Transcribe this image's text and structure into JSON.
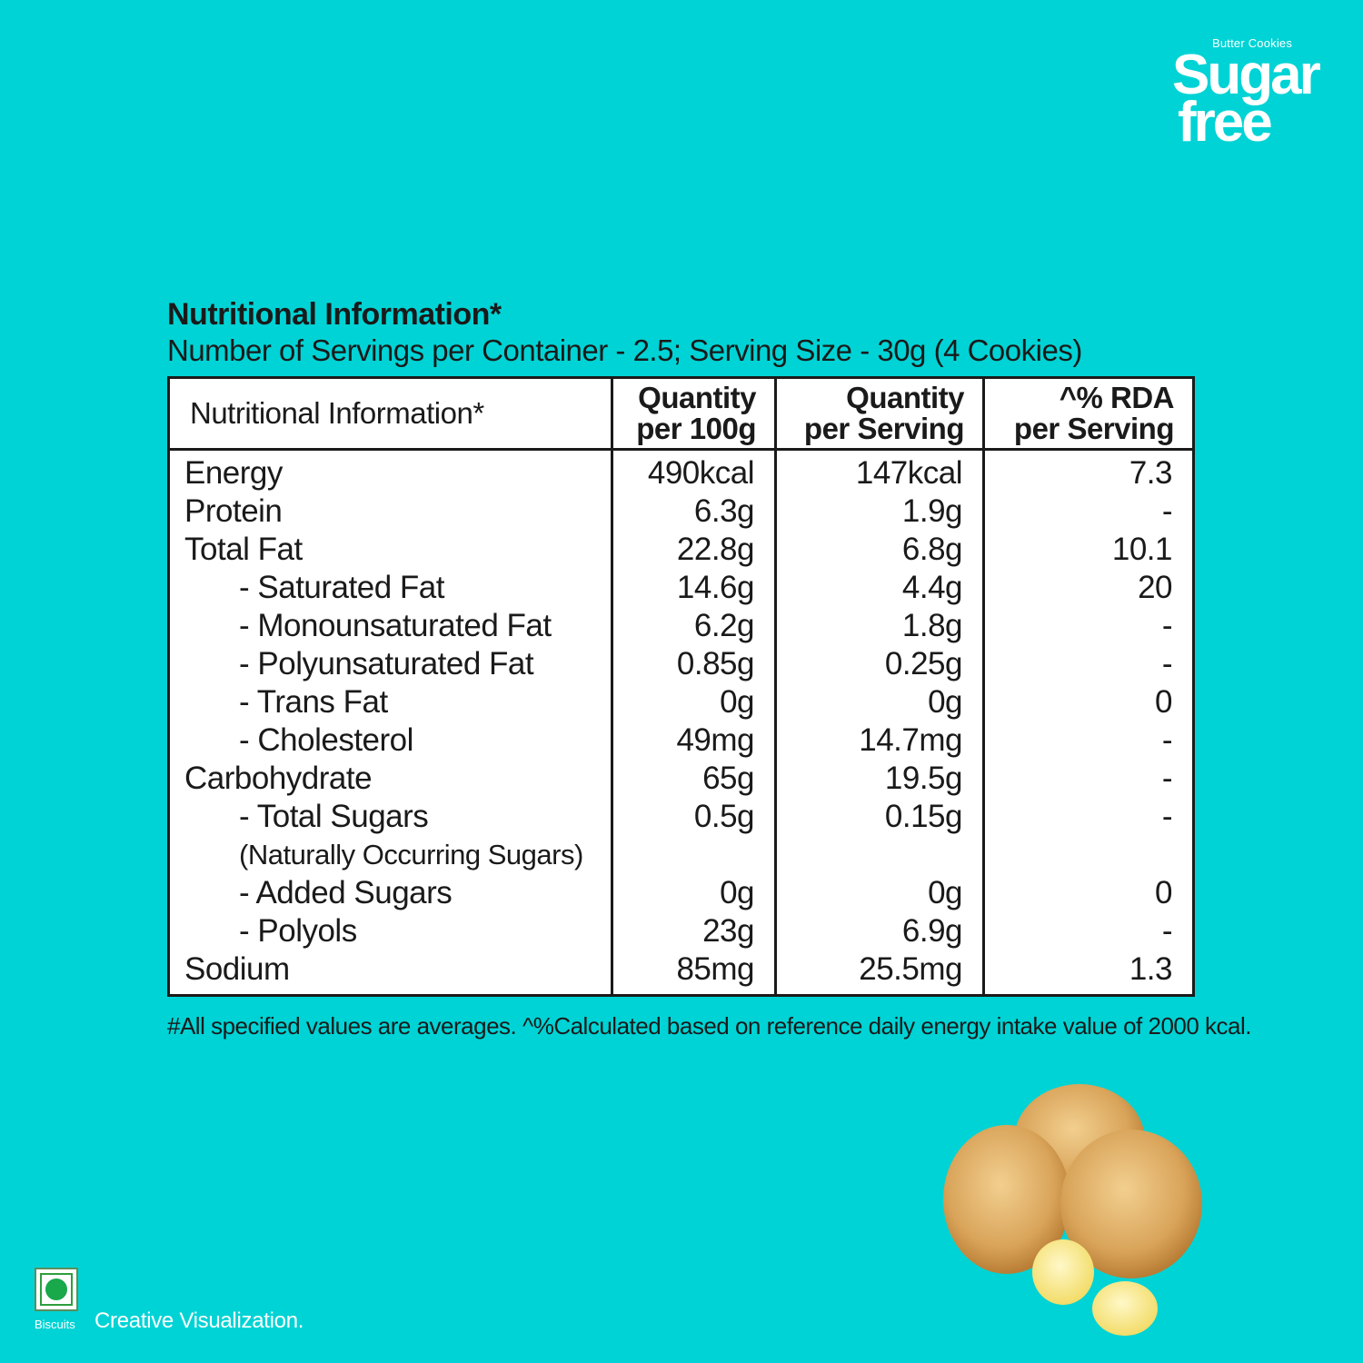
{
  "brand": {
    "tagline": "Butter Cookies",
    "name_line1": "Sugar",
    "name_line2": "free"
  },
  "header": {
    "title": "Nutritional Information*",
    "subtitle": "Number of Servings per Container - 2.5; Serving Size - 30g  (4 Cookies)"
  },
  "table": {
    "col_name": "Nutritional Information*",
    "col_per100": [
      "Quantity",
      "per 100g"
    ],
    "col_perserving": [
      "Quantity",
      "per Serving"
    ],
    "col_rda": [
      "^% RDA",
      "per Serving"
    ],
    "rows": [
      {
        "name": "Energy",
        "per100": "490kcal",
        "serving": "147kcal",
        "rda": "7.3"
      },
      {
        "name": "Protein",
        "per100": "6.3g",
        "serving": "1.9g",
        "rda": "-"
      },
      {
        "name": "Total Fat",
        "per100": "22.8g",
        "serving": "6.8g",
        "rda": "10.1"
      },
      {
        "name": "- Saturated Fat",
        "per100": "14.6g",
        "serving": "4.4g",
        "rda": "20"
      },
      {
        "name": "- Monounsaturated Fat",
        "per100": "6.2g",
        "serving": "1.8g",
        "rda": "-"
      },
      {
        "name": "- Polyunsaturated Fat",
        "per100": "0.85g",
        "serving": "0.25g",
        "rda": "-"
      },
      {
        "name": "- Trans Fat",
        "per100": "0g",
        "serving": "0g",
        "rda": "0"
      },
      {
        "name": "- Cholesterol",
        "per100": "49mg",
        "serving": "14.7mg",
        "rda": "-"
      },
      {
        "name": "Carbohydrate",
        "per100": "65g",
        "serving": "19.5g",
        "rda": "-"
      },
      {
        "name": "- Total Sugars",
        "per100": "0.5g",
        "serving": "0.15g",
        "rda": "-"
      },
      {
        "name": "(Naturally Occurring Sugars)",
        "per100": "",
        "serving": "",
        "rda": ""
      },
      {
        "name": "- Added Sugars",
        "per100": "0g",
        "serving": "0g",
        "rda": "0"
      },
      {
        "name": "- Polyols",
        "per100": "23g",
        "serving": "6.9g",
        "rda": "-"
      },
      {
        "name": "Sodium",
        "per100": "85mg",
        "serving": "25.5mg",
        "rda": "1.3"
      }
    ]
  },
  "footnote": "#All specified values are averages. ^%Calculated based on reference daily energy intake value of 2000 kcal.",
  "veg_label": "Biscuits",
  "credit": "Creative Visualization.",
  "colors": {
    "background": "#00d3d5",
    "veg_mark": "#19a84a"
  }
}
